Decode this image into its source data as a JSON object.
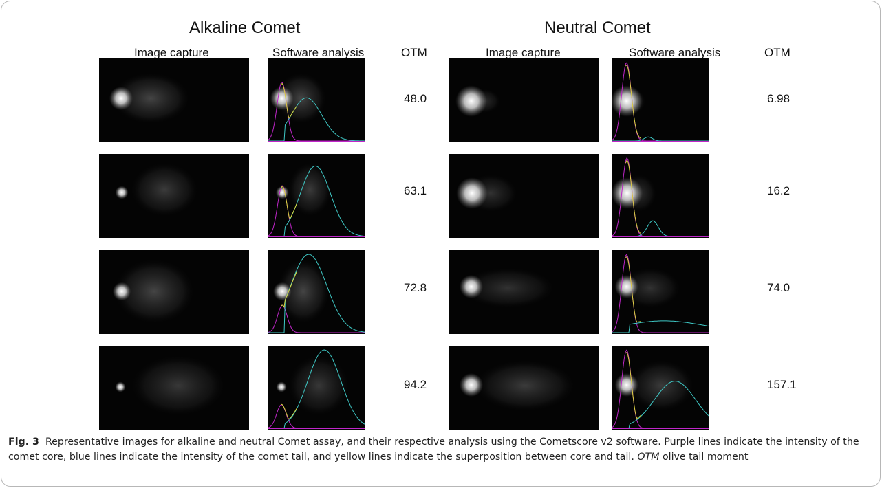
{
  "figure": {
    "panels": [
      {
        "title": "Alkaline Comet",
        "col_image_capture": "Image capture",
        "col_software_analysis": "Software analysis",
        "col_otm": "OTM",
        "rows": [
          {
            "otm": "48.0"
          },
          {
            "otm": "63.1"
          },
          {
            "otm": "72.8"
          },
          {
            "otm": "94.2"
          }
        ]
      },
      {
        "title": "Neutral Comet",
        "col_image_capture": "Image capture",
        "col_software_analysis": "Software analysis",
        "col_otm": "OTM",
        "rows": [
          {
            "otm": "6.98"
          },
          {
            "otm": "16.2"
          },
          {
            "otm": "74.0"
          },
          {
            "otm": "157.1"
          }
        ]
      }
    ],
    "caption": {
      "label": "Fig. 3",
      "text": "Representative images for alkaline and neutral Comet assay, and their respective analysis using the Cometscore v2 software. Purple lines indicate the intensity of the comet core, blue lines indicate the intensity of the comet tail, and yellow lines indicate the superposition between core and tail.",
      "abbr": "OTM",
      "abbr_def": "olive tail moment"
    },
    "trace_colors": {
      "core": "#c026c9",
      "tail": "#3fc9c6",
      "overlap": "#d8d53a",
      "background": "#040404"
    }
  }
}
